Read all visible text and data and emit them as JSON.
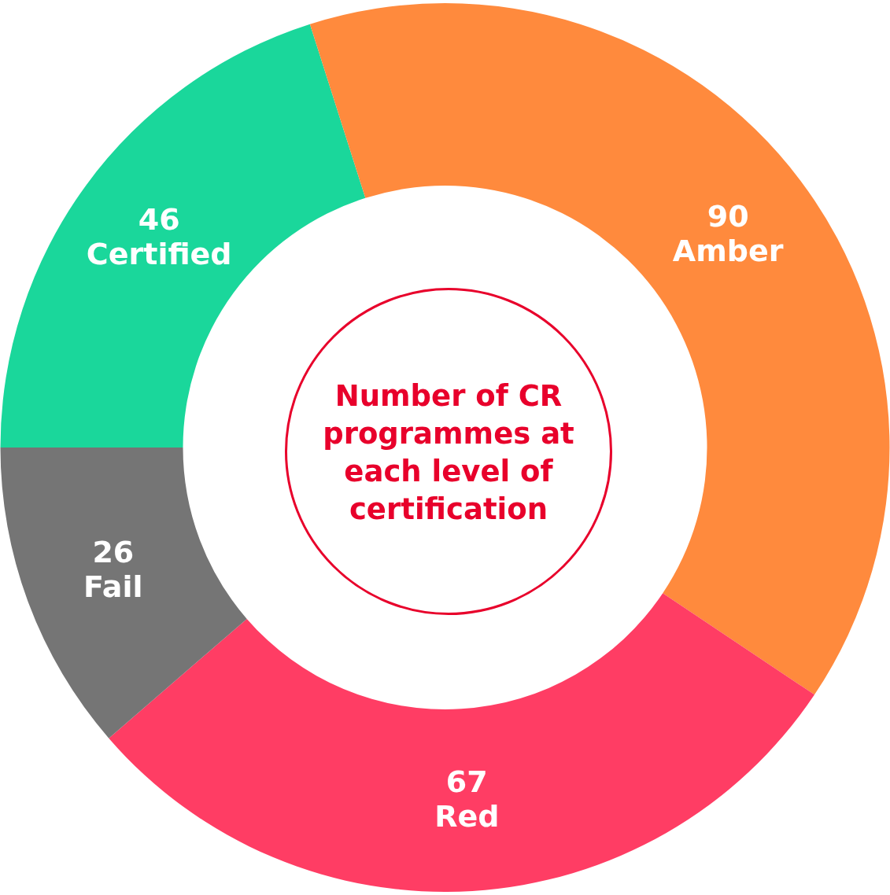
{
  "chart_data": {
    "type": "donut",
    "title": "Number of CR programmes at each level of certification",
    "categories": [
      "Certified",
      "Amber",
      "Red",
      "Fail"
    ],
    "values": [
      46,
      90,
      67,
      26
    ],
    "colors": [
      "#1ad79b",
      "#ff8a3d",
      "#ff3d64",
      "#757575"
    ],
    "data_labels": true
  }
}
